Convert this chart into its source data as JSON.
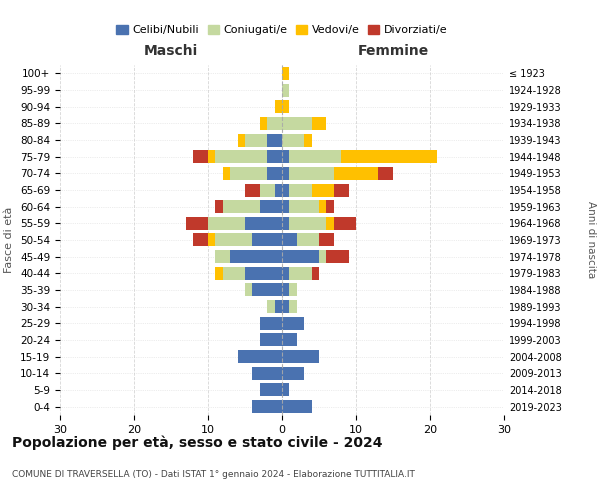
{
  "age_groups": [
    "100+",
    "95-99",
    "90-94",
    "85-89",
    "80-84",
    "75-79",
    "70-74",
    "65-69",
    "60-64",
    "55-59",
    "50-54",
    "45-49",
    "40-44",
    "35-39",
    "30-34",
    "25-29",
    "20-24",
    "15-19",
    "10-14",
    "5-9",
    "0-4"
  ],
  "birth_years": [
    "≤ 1923",
    "1924-1928",
    "1929-1933",
    "1934-1938",
    "1939-1943",
    "1944-1948",
    "1949-1953",
    "1954-1958",
    "1959-1963",
    "1964-1968",
    "1969-1973",
    "1974-1978",
    "1979-1983",
    "1984-1988",
    "1989-1993",
    "1994-1998",
    "1999-2003",
    "2004-2008",
    "2009-2013",
    "2014-2018",
    "2019-2023"
  ],
  "male": {
    "celibe": [
      0,
      0,
      0,
      0,
      2,
      2,
      2,
      1,
      3,
      5,
      4,
      7,
      5,
      4,
      1,
      3,
      3,
      6,
      4,
      3,
      4
    ],
    "coniugato": [
      0,
      0,
      0,
      2,
      3,
      7,
      5,
      2,
      5,
      5,
      5,
      2,
      3,
      1,
      1,
      0,
      0,
      0,
      0,
      0,
      0
    ],
    "vedovo": [
      0,
      0,
      1,
      1,
      1,
      1,
      1,
      0,
      0,
      0,
      1,
      0,
      1,
      0,
      0,
      0,
      0,
      0,
      0,
      0,
      0
    ],
    "divorziato": [
      0,
      0,
      0,
      0,
      0,
      2,
      0,
      2,
      1,
      3,
      2,
      0,
      0,
      0,
      0,
      0,
      0,
      0,
      0,
      0,
      0
    ]
  },
  "female": {
    "nubile": [
      0,
      0,
      0,
      0,
      0,
      1,
      1,
      1,
      1,
      1,
      2,
      5,
      1,
      1,
      1,
      3,
      2,
      5,
      3,
      1,
      4
    ],
    "coniugata": [
      0,
      1,
      0,
      4,
      3,
      7,
      6,
      3,
      4,
      5,
      3,
      1,
      3,
      1,
      1,
      0,
      0,
      0,
      0,
      0,
      0
    ],
    "vedova": [
      1,
      0,
      1,
      2,
      1,
      13,
      6,
      3,
      1,
      1,
      0,
      0,
      0,
      0,
      0,
      0,
      0,
      0,
      0,
      0,
      0
    ],
    "divorziata": [
      0,
      0,
      0,
      0,
      0,
      0,
      2,
      2,
      1,
      3,
      2,
      3,
      1,
      0,
      0,
      0,
      0,
      0,
      0,
      0,
      0
    ]
  },
  "colors": {
    "celibe": "#4a72b0",
    "coniugato": "#c5d9a0",
    "vedovo": "#ffc000",
    "divorziato": "#c0392b"
  },
  "xlim": 30,
  "title": "Popolazione per età, sesso e stato civile - 2024",
  "subtitle": "COMUNE DI TRAVERSELLA (TO) - Dati ISTAT 1° gennaio 2024 - Elaborazione TUTTITALIA.IT",
  "xlabel_left": "Maschi",
  "xlabel_right": "Femmine",
  "ylabel": "Fasce di età",
  "ylabel_right": "Anni di nascita",
  "legend_labels": [
    "Celibi/Nubili",
    "Coniugati/e",
    "Vedovi/e",
    "Divorziati/e"
  ],
  "background_color": "#ffffff",
  "xticks": [
    30,
    20,
    10,
    0,
    10,
    20,
    30
  ],
  "grid_color": "#cccccc"
}
